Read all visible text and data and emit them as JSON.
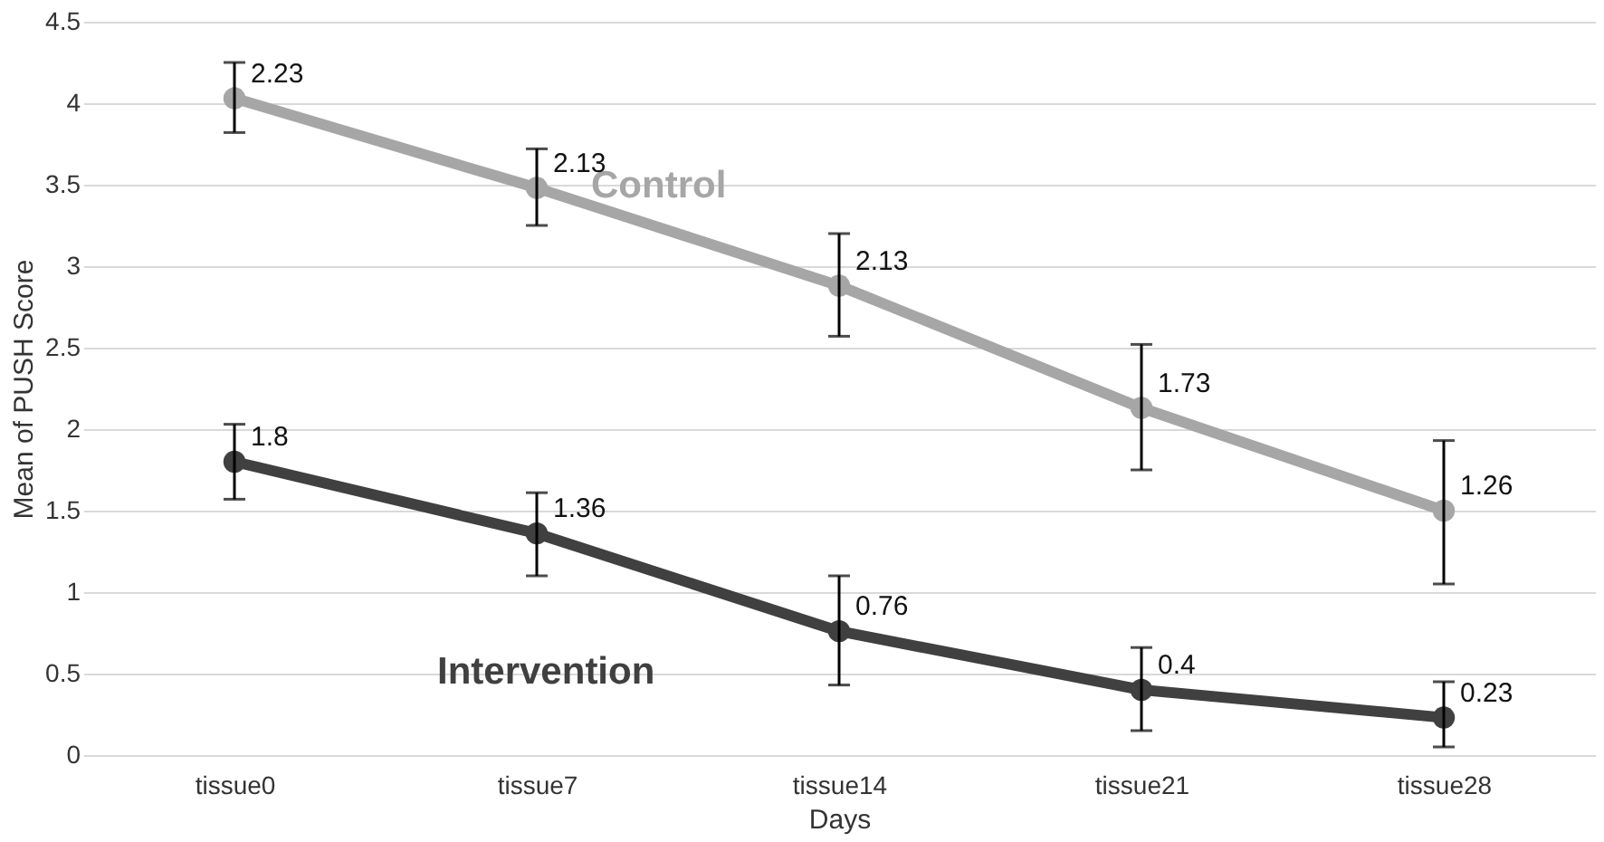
{
  "chart_data": {
    "type": "line",
    "xlabel": "Days",
    "ylabel": "Mean of PUSH Score",
    "categories": [
      "tissue0",
      "tissue7",
      "tissue14",
      "tissue21",
      "tissue28"
    ],
    "series": [
      {
        "name": "Control",
        "color": "#a6a6a6",
        "values": [
          4.03,
          3.48,
          2.88,
          2.13,
          1.5
        ],
        "errors": [
          [
            3.82,
            4.25
          ],
          [
            3.25,
            3.72
          ],
          [
            2.57,
            3.2
          ],
          [
            1.75,
            2.52
          ],
          [
            1.05,
            1.93
          ]
        ]
      },
      {
        "name": "Intervention",
        "color": "#404040",
        "values": [
          1.8,
          1.36,
          0.76,
          0.4,
          0.23
        ],
        "errors": [
          [
            1.57,
            2.03
          ],
          [
            1.1,
            1.61
          ],
          [
            0.43,
            1.1
          ],
          [
            0.15,
            0.66
          ],
          [
            0.05,
            0.45
          ]
        ]
      }
    ],
    "annotations": [
      {
        "text": "2.23",
        "x": "tissue0",
        "y": 4.03
      },
      {
        "text": "2.13",
        "x": "tissue7",
        "y": 3.48
      },
      {
        "text": "2.13",
        "x": "tissue14",
        "y": 2.88
      },
      {
        "text": "1.73",
        "x": "tissue21",
        "y": 2.13
      },
      {
        "text": "1.26",
        "x": "tissue28",
        "y": 1.5
      },
      {
        "text": "1.8",
        "x": "tissue0",
        "y": 1.8
      },
      {
        "text": "1.36",
        "x": "tissue7",
        "y": 1.36
      },
      {
        "text": "0.76",
        "x": "tissue14",
        "y": 0.76
      },
      {
        "text": "0.4",
        "x": "tissue21",
        "y": 0.4
      },
      {
        "text": "0.23",
        "x": "tissue28",
        "y": 0.23
      }
    ],
    "ylim": [
      0,
      4.5
    ],
    "yticks": [
      0,
      0.5,
      1,
      1.5,
      2,
      2.5,
      3,
      3.5,
      4,
      4.5
    ],
    "grid": "y",
    "marker": "circle",
    "legend": false
  }
}
